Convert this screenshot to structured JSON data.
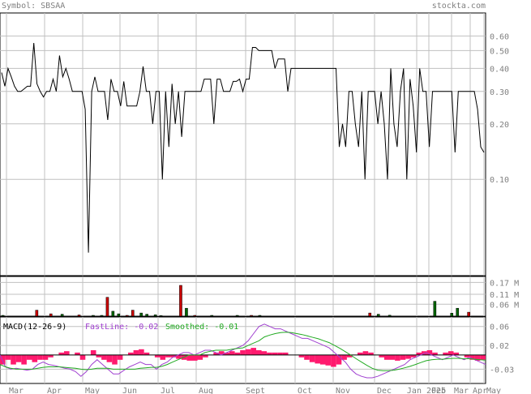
{
  "header": {
    "symbol_label": "Symbol: SBSAA",
    "brand": "stockta.com"
  },
  "colors": {
    "text": "#808080",
    "grid": "#c0c0c0",
    "price_line": "#000000",
    "volume_up": "#006400",
    "volume_down": "#cc0000",
    "macd_hist": "#ff1a6e",
    "fast_line": "#a040d0",
    "smoothed_line": "#22aa22"
  },
  "chart_data": [
    {
      "type": "line",
      "name": "price",
      "yscale": "log",
      "ylim": [
        0.03,
        0.8
      ],
      "yticks": [
        "0.60",
        "0.50",
        "0.40",
        "0.30",
        "0.20",
        "0.10"
      ],
      "ytick_values": [
        0.6,
        0.5,
        0.4,
        0.3,
        0.2,
        0.1
      ],
      "x_tick_labels": [
        "Mar",
        "Apr",
        "May",
        "Jun",
        "Jul",
        "Aug",
        "Sept",
        "Oct",
        "Nov",
        "Dec",
        "Jan 2025",
        "Feb",
        "Mar",
        "Apr",
        "May"
      ],
      "values": [
        0.38,
        0.32,
        0.4,
        0.36,
        0.32,
        0.3,
        0.3,
        0.31,
        0.32,
        0.32,
        0.55,
        0.33,
        0.3,
        0.28,
        0.3,
        0.3,
        0.35,
        0.3,
        0.47,
        0.36,
        0.4,
        0.35,
        0.3,
        0.3,
        0.3,
        0.3,
        0.24,
        0.04,
        0.3,
        0.36,
        0.3,
        0.3,
        0.3,
        0.21,
        0.35,
        0.3,
        0.3,
        0.25,
        0.34,
        0.25,
        0.25,
        0.25,
        0.25,
        0.3,
        0.41,
        0.3,
        0.3,
        0.2,
        0.3,
        0.3,
        0.1,
        0.3,
        0.15,
        0.33,
        0.2,
        0.3,
        0.17,
        0.3,
        0.3,
        0.3,
        0.3,
        0.3,
        0.3,
        0.35,
        0.35,
        0.35,
        0.2,
        0.35,
        0.35,
        0.3,
        0.3,
        0.3,
        0.34,
        0.34,
        0.35,
        0.3,
        0.35,
        0.35,
        0.52,
        0.52,
        0.5,
        0.5,
        0.5,
        0.5,
        0.5,
        0.4,
        0.45,
        0.45,
        0.45,
        0.3,
        0.4,
        0.4,
        0.4,
        0.4,
        0.4,
        0.4,
        0.4,
        0.4,
        0.4,
        0.4,
        0.4,
        0.4,
        0.4,
        0.4,
        0.4,
        0.15,
        0.2,
        0.15,
        0.3,
        0.3,
        0.2,
        0.15,
        0.3,
        0.1,
        0.3,
        0.3,
        0.3,
        0.2,
        0.3,
        0.2,
        0.1,
        0.4,
        0.2,
        0.15,
        0.3,
        0.4,
        0.1,
        0.35,
        0.25,
        0.14,
        0.4,
        0.3,
        0.3,
        0.15,
        0.3,
        0.3,
        0.3,
        0.3,
        0.3,
        0.3,
        0.3,
        0.14,
        0.3,
        0.3,
        0.3,
        0.3,
        0.3,
        0.3,
        0.24,
        0.15,
        0.14
      ]
    },
    {
      "type": "bar",
      "name": "volume",
      "ylim": [
        0,
        0.2
      ],
      "yticks": [
        "0.17 M",
        "0.11 M",
        "0.06 M"
      ],
      "ytick_values": [
        0.17,
        0.11,
        0.06
      ],
      "bars": [
        {
          "i": 0,
          "v": 0.004,
          "c": "up"
        },
        {
          "i": 12,
          "v": 0.03,
          "c": "down"
        },
        {
          "i": 17,
          "v": 0.012,
          "c": "down"
        },
        {
          "i": 21,
          "v": 0.01,
          "c": "up"
        },
        {
          "i": 27,
          "v": 0.006,
          "c": "down"
        },
        {
          "i": 32,
          "v": 0.004,
          "c": "up"
        },
        {
          "i": 35,
          "v": 0.004,
          "c": "up"
        },
        {
          "i": 37,
          "v": 0.095,
          "c": "down"
        },
        {
          "i": 39,
          "v": 0.025,
          "c": "up"
        },
        {
          "i": 41,
          "v": 0.012,
          "c": "up"
        },
        {
          "i": 44,
          "v": 0.004,
          "c": "down"
        },
        {
          "i": 46,
          "v": 0.03,
          "c": "down"
        },
        {
          "i": 49,
          "v": 0.016,
          "c": "up"
        },
        {
          "i": 51,
          "v": 0.01,
          "c": "up"
        },
        {
          "i": 54,
          "v": 0.007,
          "c": "up"
        },
        {
          "i": 56,
          "v": 0.003,
          "c": "up"
        },
        {
          "i": 63,
          "v": 0.155,
          "c": "down"
        },
        {
          "i": 65,
          "v": 0.04,
          "c": "up"
        },
        {
          "i": 68,
          "v": 0.004,
          "c": "down"
        },
        {
          "i": 74,
          "v": 0.004,
          "c": "up"
        },
        {
          "i": 83,
          "v": 0.004,
          "c": "up"
        },
        {
          "i": 88,
          "v": 0.004,
          "c": "down"
        },
        {
          "i": 91,
          "v": 0.004,
          "c": "up"
        },
        {
          "i": 130,
          "v": 0.016,
          "c": "down"
        },
        {
          "i": 133,
          "v": 0.01,
          "c": "up"
        },
        {
          "i": 137,
          "v": 0.005,
          "c": "up"
        },
        {
          "i": 153,
          "v": 0.075,
          "c": "up"
        },
        {
          "i": 159,
          "v": 0.015,
          "c": "up"
        },
        {
          "i": 161,
          "v": 0.04,
          "c": "up"
        },
        {
          "i": 165,
          "v": 0.02,
          "c": "down"
        }
      ],
      "n_slots": 172
    },
    {
      "type": "line",
      "name": "macd",
      "title": "MACD(12-26-9)",
      "fast_label": "FastLine: -0.02",
      "smoothed_label": "Smoothed: -0.01",
      "ylim": [
        -0.06,
        0.08
      ],
      "yticks": [
        "0.06",
        "0.02",
        "-0.03"
      ],
      "ytick_values": [
        0.06,
        0.02,
        -0.03
      ],
      "fast_line": [
        0.0,
        -0.025,
        -0.03,
        -0.028,
        -0.03,
        -0.032,
        -0.03,
        -0.02,
        -0.015,
        -0.02,
        -0.022,
        -0.025,
        -0.028,
        -0.03,
        -0.035,
        -0.045,
        -0.035,
        -0.02,
        -0.01,
        -0.02,
        -0.03,
        -0.04,
        -0.04,
        -0.032,
        -0.025,
        -0.02,
        -0.015,
        -0.02,
        -0.02,
        -0.03,
        -0.02,
        -0.015,
        -0.005,
        0.0,
        0.005,
        0.005,
        0.0,
        0.005,
        0.01,
        0.01,
        0.005,
        0.0,
        0.005,
        0.01,
        0.015,
        0.02,
        0.03,
        0.045,
        0.06,
        0.065,
        0.06,
        0.055,
        0.055,
        0.05,
        0.045,
        0.04,
        0.035,
        0.035,
        0.03,
        0.025,
        0.02,
        0.015,
        0.005,
        -0.005,
        -0.015,
        -0.03,
        -0.04,
        -0.045,
        -0.048,
        -0.048,
        -0.045,
        -0.04,
        -0.035,
        -0.03,
        -0.025,
        -0.02,
        -0.01,
        -0.005,
        0.0,
        0.005,
        0.0,
        -0.005,
        -0.01,
        -0.005,
        0.0,
        -0.005,
        -0.01,
        -0.005,
        -0.01,
        -0.015,
        -0.02
      ],
      "smoothed_line": [
        -0.02,
        -0.025,
        -0.028,
        -0.03,
        -0.03,
        -0.03,
        -0.03,
        -0.028,
        -0.026,
        -0.025,
        -0.025,
        -0.025,
        -0.026,
        -0.027,
        -0.028,
        -0.03,
        -0.031,
        -0.03,
        -0.028,
        -0.028,
        -0.028,
        -0.03,
        -0.03,
        -0.03,
        -0.03,
        -0.03,
        -0.028,
        -0.027,
        -0.026,
        -0.026,
        -0.024,
        -0.02,
        -0.015,
        -0.01,
        -0.005,
        0.0,
        0.0,
        0.0,
        0.005,
        0.008,
        0.01,
        0.01,
        0.01,
        0.012,
        0.014,
        0.015,
        0.02,
        0.025,
        0.03,
        0.038,
        0.042,
        0.045,
        0.047,
        0.048,
        0.047,
        0.045,
        0.043,
        0.04,
        0.037,
        0.034,
        0.03,
        0.026,
        0.02,
        0.014,
        0.007,
        0.0,
        -0.008,
        -0.015,
        -0.022,
        -0.028,
        -0.032,
        -0.033,
        -0.033,
        -0.032,
        -0.03,
        -0.027,
        -0.024,
        -0.02,
        -0.016,
        -0.012,
        -0.01,
        -0.009,
        -0.009,
        -0.008,
        -0.007,
        -0.007,
        -0.008,
        -0.008,
        -0.009,
        -0.01,
        -0.011
      ],
      "histogram": [
        -0.02,
        -0.01,
        -0.02,
        -0.015,
        -0.02,
        -0.01,
        -0.015,
        -0.01,
        -0.01,
        -0.005,
        0.0,
        0.005,
        0.008,
        0.0,
        0.005,
        -0.01,
        0.0,
        0.01,
        -0.005,
        -0.01,
        -0.015,
        -0.02,
        -0.01,
        0.0,
        0.005,
        0.01,
        0.012,
        0.005,
        0.0,
        -0.005,
        -0.01,
        -0.005,
        -0.005,
        -0.008,
        -0.01,
        -0.012,
        -0.012,
        -0.01,
        -0.005,
        0.0,
        0.005,
        0.008,
        0.005,
        0.008,
        0.005,
        0.01,
        0.012,
        0.015,
        0.01,
        0.008,
        0.005,
        0.005,
        0.005,
        0.005,
        0.0,
        0.0,
        -0.005,
        -0.01,
        -0.015,
        -0.018,
        -0.02,
        -0.022,
        -0.025,
        -0.02,
        -0.01,
        -0.005,
        0.0,
        0.005,
        0.008,
        0.005,
        0.0,
        -0.005,
        -0.01,
        -0.01,
        -0.012,
        -0.01,
        -0.008,
        -0.005,
        0.005,
        0.008,
        0.01,
        0.005,
        0.0,
        0.005,
        0.008,
        0.005,
        0.0,
        -0.005,
        -0.01,
        -0.012,
        -0.01
      ]
    }
  ]
}
